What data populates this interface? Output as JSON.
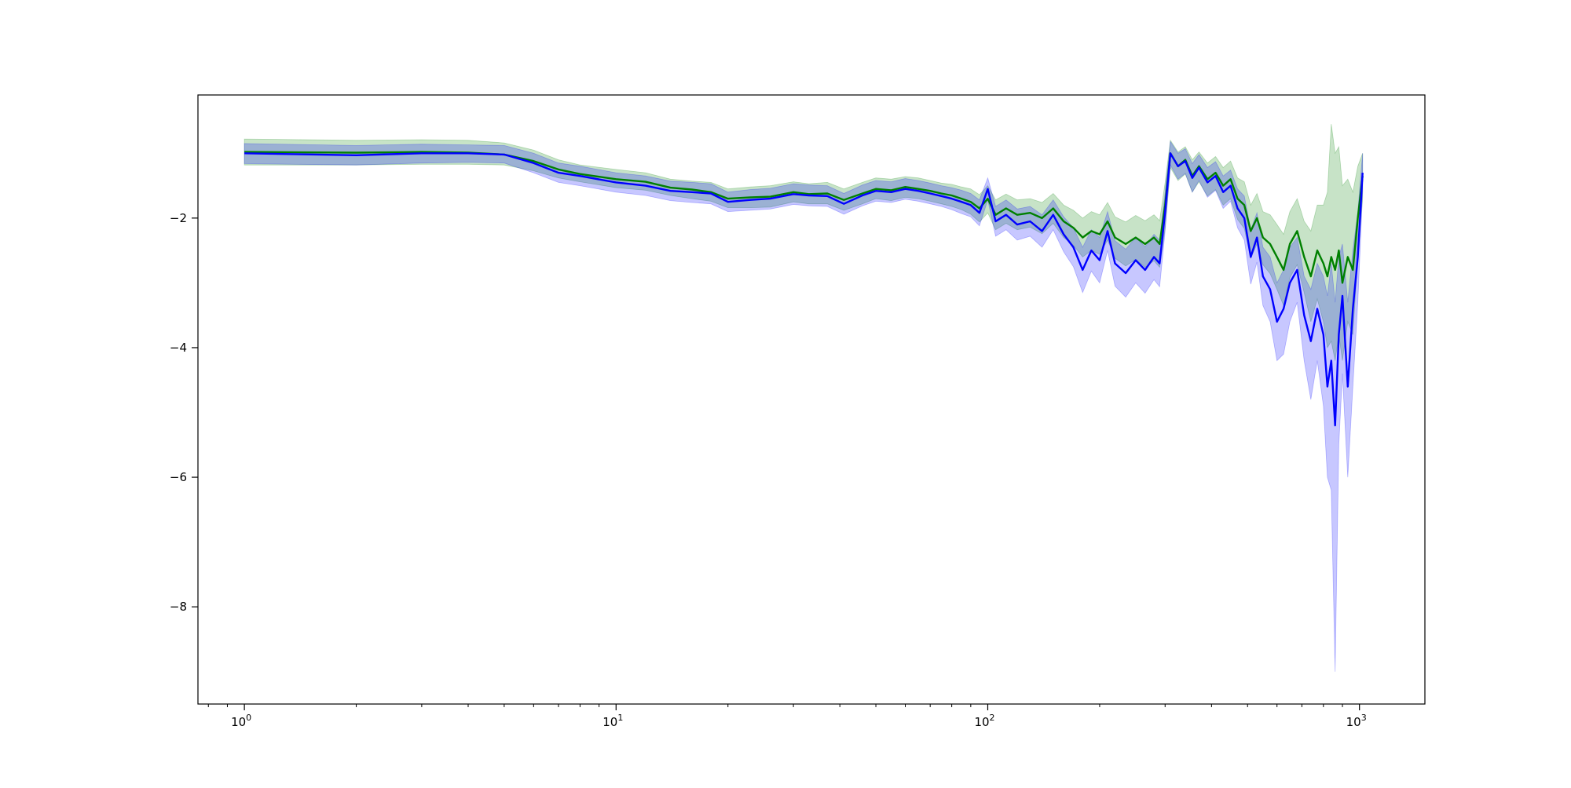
{
  "chart_data": {
    "type": "line",
    "title": "",
    "xlabel": "",
    "ylabel": "",
    "xscale": "log",
    "xlim": [
      0.75,
      1500
    ],
    "ylim": [
      -9.5,
      -0.1
    ],
    "grid": false,
    "x_ticks": [
      {
        "value": 1,
        "base": "10",
        "exp": "0"
      },
      {
        "value": 10,
        "base": "10",
        "exp": "1"
      },
      {
        "value": 100,
        "base": "10",
        "exp": "2"
      },
      {
        "value": 1000,
        "base": "10",
        "exp": "3"
      }
    ],
    "y_ticks": [
      {
        "value": -2,
        "label": "−2"
      },
      {
        "value": -4,
        "label": "−4"
      },
      {
        "value": -6,
        "label": "−6"
      },
      {
        "value": -8,
        "label": "−8"
      }
    ],
    "series": [
      {
        "color": "#008000",
        "band_opacity": 0.22,
        "points": [
          [
            1,
            -0.98,
            -0.78,
            -1.18
          ],
          [
            2,
            -0.99,
            -0.8,
            -1.18
          ],
          [
            3,
            -0.98,
            -0.79,
            -1.17
          ],
          [
            4,
            -0.99,
            -0.8,
            -1.17
          ],
          [
            5,
            -1.02,
            -0.84,
            -1.18
          ],
          [
            6,
            -1.12,
            -0.95,
            -1.27
          ],
          [
            7,
            -1.25,
            -1.1,
            -1.38
          ],
          [
            8,
            -1.32,
            -1.18,
            -1.44
          ],
          [
            10,
            -1.4,
            -1.25,
            -1.53
          ],
          [
            12,
            -1.44,
            -1.3,
            -1.57
          ],
          [
            14,
            -1.53,
            -1.4,
            -1.65
          ],
          [
            16,
            -1.56,
            -1.43,
            -1.7
          ],
          [
            18,
            -1.6,
            -1.45,
            -1.74
          ],
          [
            20,
            -1.7,
            -1.55,
            -1.84
          ],
          [
            23,
            -1.68,
            -1.52,
            -1.84
          ],
          [
            26,
            -1.67,
            -1.5,
            -1.83
          ],
          [
            30,
            -1.6,
            -1.44,
            -1.75
          ],
          [
            33,
            -1.63,
            -1.47,
            -1.78
          ],
          [
            37,
            -1.62,
            -1.45,
            -1.78
          ],
          [
            41,
            -1.72,
            -1.55,
            -1.88
          ],
          [
            46,
            -1.62,
            -1.45,
            -1.78
          ],
          [
            50,
            -1.55,
            -1.38,
            -1.7
          ],
          [
            55,
            -1.57,
            -1.4,
            -1.73
          ],
          [
            60,
            -1.52,
            -1.36,
            -1.68
          ],
          [
            65,
            -1.55,
            -1.38,
            -1.7
          ],
          [
            70,
            -1.58,
            -1.42,
            -1.74
          ],
          [
            75,
            -1.62,
            -1.46,
            -1.78
          ],
          [
            80,
            -1.65,
            -1.48,
            -1.82
          ],
          [
            85,
            -1.7,
            -1.52,
            -1.87
          ],
          [
            90,
            -1.75,
            -1.55,
            -1.94
          ],
          [
            95,
            -1.85,
            -1.64,
            -2.06
          ],
          [
            100,
            -1.7,
            -1.5,
            -1.92
          ],
          [
            105,
            -1.95,
            -1.72,
            -2.18
          ],
          [
            112,
            -1.85,
            -1.63,
            -2.08
          ],
          [
            120,
            -1.95,
            -1.72,
            -2.18
          ],
          [
            130,
            -1.92,
            -1.7,
            -2.14
          ],
          [
            140,
            -2.0,
            -1.76,
            -2.24
          ],
          [
            150,
            -1.85,
            -1.62,
            -2.08
          ],
          [
            160,
            -2.05,
            -1.8,
            -2.3
          ],
          [
            170,
            -2.15,
            -1.88,
            -2.42
          ],
          [
            180,
            -2.3,
            -2.0,
            -2.6
          ],
          [
            190,
            -2.2,
            -1.9,
            -2.5
          ],
          [
            200,
            -2.25,
            -1.95,
            -2.56
          ],
          [
            210,
            -2.05,
            -1.76,
            -2.34
          ],
          [
            220,
            -2.3,
            -1.98,
            -2.62
          ],
          [
            235,
            -2.4,
            -2.06,
            -2.74
          ],
          [
            250,
            -2.3,
            -1.96,
            -2.64
          ],
          [
            265,
            -2.4,
            -2.04,
            -2.76
          ],
          [
            280,
            -2.3,
            -1.95,
            -2.66
          ],
          [
            290,
            -2.4,
            -2.04,
            -2.76
          ],
          [
            300,
            -1.8,
            -1.45,
            -2.15
          ],
          [
            310,
            -1.0,
            -0.8,
            -1.22
          ],
          [
            325,
            -1.2,
            -0.98,
            -1.42
          ],
          [
            340,
            -1.1,
            -0.9,
            -1.32
          ],
          [
            355,
            -1.35,
            -1.1,
            -1.6
          ],
          [
            370,
            -1.2,
            -0.98,
            -1.44
          ],
          [
            390,
            -1.4,
            -1.15,
            -1.66
          ],
          [
            410,
            -1.3,
            -1.05,
            -1.56
          ],
          [
            430,
            -1.5,
            -1.22,
            -1.8
          ],
          [
            450,
            -1.4,
            -1.12,
            -1.7
          ],
          [
            470,
            -1.7,
            -1.38,
            -2.02
          ],
          [
            490,
            -1.8,
            -1.44,
            -2.16
          ],
          [
            510,
            -2.2,
            -1.8,
            -2.62
          ],
          [
            530,
            -2.0,
            -1.62,
            -2.4
          ],
          [
            550,
            -2.3,
            -1.9,
            -2.72
          ],
          [
            575,
            -2.4,
            -1.95,
            -2.86
          ],
          [
            600,
            -2.6,
            -2.1,
            -3.1
          ],
          [
            625,
            -2.8,
            -2.25,
            -3.35
          ],
          [
            650,
            -2.4,
            -1.9,
            -2.92
          ],
          [
            680,
            -2.2,
            -1.7,
            -2.72
          ],
          [
            710,
            -2.6,
            -2.05,
            -3.15
          ],
          [
            740,
            -2.9,
            -2.2,
            -3.6
          ],
          [
            770,
            -2.5,
            -1.8,
            -3.25
          ],
          [
            800,
            -2.7,
            -1.8,
            -3.6
          ],
          [
            820,
            -2.9,
            -1.6,
            -4.0
          ],
          [
            840,
            -2.6,
            -0.55,
            -3.9
          ],
          [
            860,
            -2.8,
            -1.0,
            -4.2
          ],
          [
            880,
            -2.5,
            -0.9,
            -3.8
          ],
          [
            900,
            -3.0,
            -1.5,
            -4.2
          ],
          [
            930,
            -2.6,
            -1.4,
            -3.6
          ],
          [
            960,
            -2.8,
            -1.6,
            -3.8
          ],
          [
            990,
            -2.0,
            -1.2,
            -2.6
          ],
          [
            1020,
            -1.35,
            -1.0,
            -1.7
          ]
        ]
      },
      {
        "color": "#0000ff",
        "band_opacity": 0.22,
        "points": [
          [
            1,
            -1.0,
            -0.85,
            -1.16
          ],
          [
            2,
            -1.03,
            -0.88,
            -1.18
          ],
          [
            3,
            -1.0,
            -0.86,
            -1.15
          ],
          [
            4,
            -1.0,
            -0.87,
            -1.14
          ],
          [
            5,
            -1.02,
            -0.88,
            -1.15
          ],
          [
            6,
            -1.15,
            -1.0,
            -1.3
          ],
          [
            7,
            -1.3,
            -1.15,
            -1.45
          ],
          [
            8,
            -1.35,
            -1.2,
            -1.5
          ],
          [
            10,
            -1.45,
            -1.3,
            -1.6
          ],
          [
            12,
            -1.5,
            -1.35,
            -1.65
          ],
          [
            14,
            -1.58,
            -1.43,
            -1.73
          ],
          [
            16,
            -1.6,
            -1.45,
            -1.76
          ],
          [
            18,
            -1.62,
            -1.47,
            -1.78
          ],
          [
            20,
            -1.75,
            -1.6,
            -1.9
          ],
          [
            23,
            -1.72,
            -1.56,
            -1.88
          ],
          [
            26,
            -1.7,
            -1.54,
            -1.86
          ],
          [
            30,
            -1.63,
            -1.47,
            -1.79
          ],
          [
            33,
            -1.65,
            -1.49,
            -1.81
          ],
          [
            37,
            -1.66,
            -1.5,
            -1.82
          ],
          [
            41,
            -1.78,
            -1.62,
            -1.94
          ],
          [
            46,
            -1.65,
            -1.49,
            -1.81
          ],
          [
            50,
            -1.58,
            -1.42,
            -1.74
          ],
          [
            55,
            -1.6,
            -1.44,
            -1.76
          ],
          [
            60,
            -1.55,
            -1.39,
            -1.71
          ],
          [
            65,
            -1.58,
            -1.42,
            -1.74
          ],
          [
            70,
            -1.62,
            -1.46,
            -1.78
          ],
          [
            75,
            -1.66,
            -1.5,
            -1.82
          ],
          [
            80,
            -1.7,
            -1.53,
            -1.87
          ],
          [
            85,
            -1.75,
            -1.57,
            -1.93
          ],
          [
            90,
            -1.8,
            -1.62,
            -1.98
          ],
          [
            95,
            -1.92,
            -1.72,
            -2.12
          ],
          [
            100,
            -1.55,
            -1.38,
            -1.72
          ],
          [
            105,
            -2.05,
            -1.82,
            -2.28
          ],
          [
            112,
            -1.95,
            -1.72,
            -2.18
          ],
          [
            120,
            -2.1,
            -1.86,
            -2.34
          ],
          [
            130,
            -2.05,
            -1.82,
            -2.28
          ],
          [
            140,
            -2.2,
            -1.95,
            -2.45
          ],
          [
            150,
            -1.95,
            -1.72,
            -2.18
          ],
          [
            160,
            -2.25,
            -1.98,
            -2.52
          ],
          [
            170,
            -2.45,
            -2.15,
            -2.75
          ],
          [
            180,
            -2.8,
            -2.45,
            -3.15
          ],
          [
            190,
            -2.5,
            -2.18,
            -2.82
          ],
          [
            200,
            -2.65,
            -2.3,
            -3.0
          ],
          [
            210,
            -2.2,
            -1.9,
            -2.5
          ],
          [
            220,
            -2.7,
            -2.35,
            -3.05
          ],
          [
            235,
            -2.85,
            -2.48,
            -3.22
          ],
          [
            250,
            -2.65,
            -2.3,
            -3.0
          ],
          [
            265,
            -2.8,
            -2.44,
            -3.16
          ],
          [
            280,
            -2.6,
            -2.25,
            -2.95
          ],
          [
            290,
            -2.7,
            -2.34,
            -3.06
          ],
          [
            300,
            -1.9,
            -1.6,
            -2.2
          ],
          [
            310,
            -1.0,
            -0.82,
            -1.18
          ],
          [
            325,
            -1.2,
            -1.0,
            -1.4
          ],
          [
            340,
            -1.12,
            -0.93,
            -1.31
          ],
          [
            355,
            -1.38,
            -1.16,
            -1.6
          ],
          [
            370,
            -1.22,
            -1.02,
            -1.42
          ],
          [
            390,
            -1.45,
            -1.22,
            -1.68
          ],
          [
            410,
            -1.35,
            -1.13,
            -1.57
          ],
          [
            430,
            -1.6,
            -1.35,
            -1.85
          ],
          [
            450,
            -1.5,
            -1.26,
            -1.74
          ],
          [
            470,
            -1.85,
            -1.55,
            -2.15
          ],
          [
            490,
            -2.0,
            -1.66,
            -2.34
          ],
          [
            510,
            -2.6,
            -2.18,
            -3.02
          ],
          [
            530,
            -2.3,
            -1.92,
            -2.68
          ],
          [
            550,
            -2.9,
            -2.45,
            -3.35
          ],
          [
            575,
            -3.1,
            -2.6,
            -3.6
          ],
          [
            600,
            -3.6,
            -3.0,
            -4.2
          ],
          [
            625,
            -3.4,
            -2.8,
            -4.1
          ],
          [
            650,
            -3.0,
            -2.45,
            -3.6
          ],
          [
            680,
            -2.8,
            -2.3,
            -3.3
          ],
          [
            710,
            -3.5,
            -2.9,
            -4.2
          ],
          [
            740,
            -3.9,
            -3.1,
            -4.8
          ],
          [
            770,
            -3.4,
            -2.7,
            -4.2
          ],
          [
            800,
            -3.8,
            -2.9,
            -4.9
          ],
          [
            820,
            -4.6,
            -3.2,
            -6.0
          ],
          [
            840,
            -4.2,
            -2.7,
            -6.2
          ],
          [
            860,
            -5.2,
            -3.3,
            -9.0
          ],
          [
            880,
            -3.8,
            -2.6,
            -5.5
          ],
          [
            900,
            -3.2,
            -2.4,
            -4.4
          ],
          [
            930,
            -4.6,
            -3.3,
            -6.0
          ],
          [
            960,
            -3.4,
            -2.5,
            -4.6
          ],
          [
            990,
            -2.6,
            -1.9,
            -3.3
          ],
          [
            1020,
            -1.3,
            -1.0,
            -1.6
          ]
        ]
      }
    ]
  }
}
